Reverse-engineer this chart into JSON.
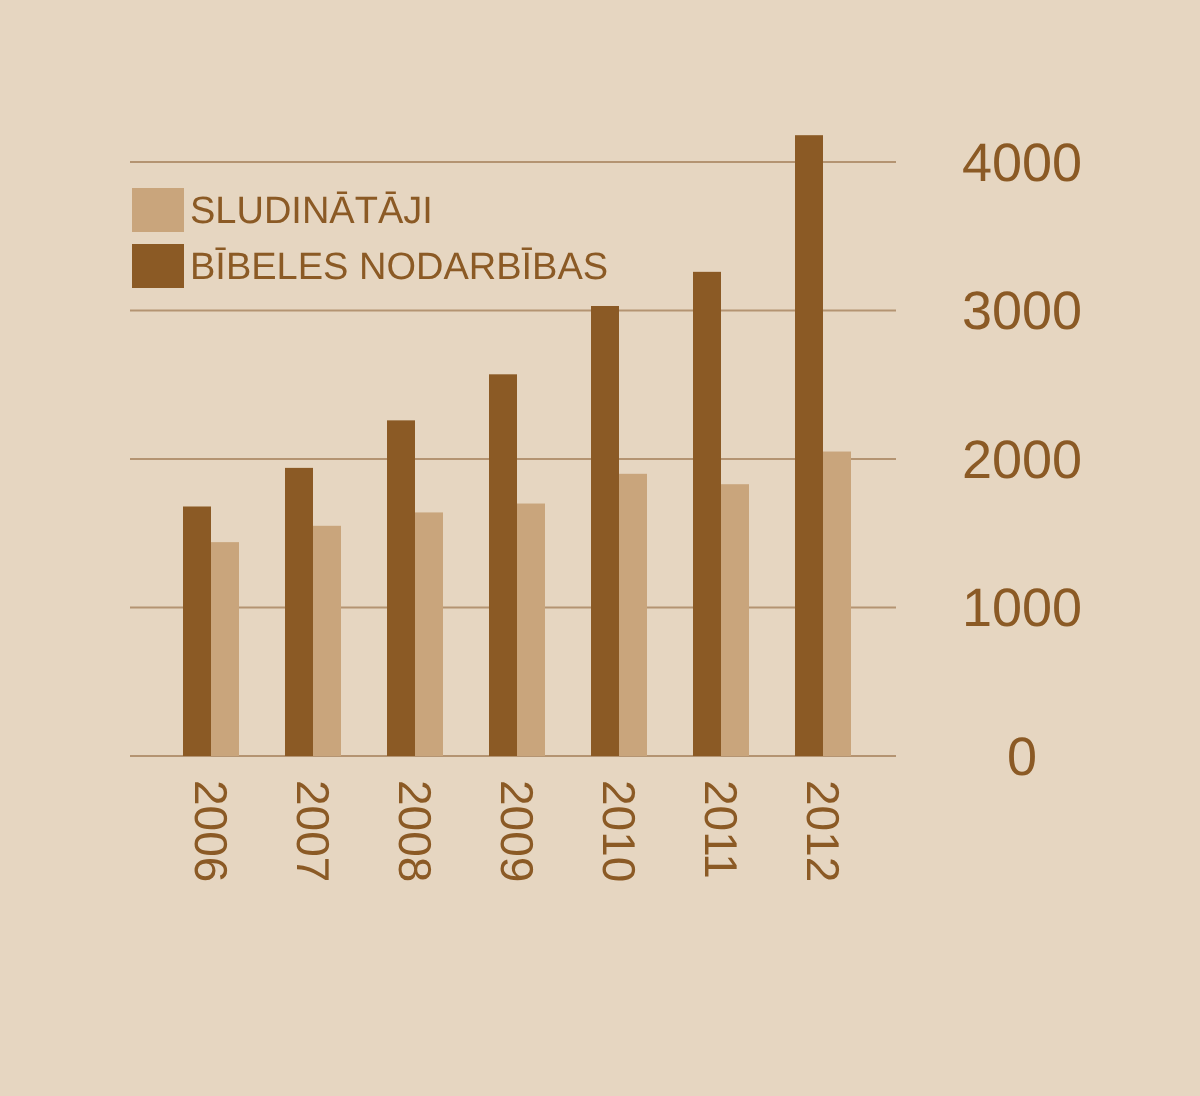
{
  "chart_data": {
    "type": "bar",
    "categories": [
      "2006",
      "2007",
      "2008",
      "2009",
      "2010",
      "2011",
      "2012"
    ],
    "series": [
      {
        "name": "SLUDINĀTĀJI",
        "color": "#c9a57c",
        "values": [
          1440,
          1550,
          1640,
          1700,
          1900,
          1830,
          2050
        ]
      },
      {
        "name": "BĪBELES NODARBĪBAS",
        "color": "#8b5a25",
        "values": [
          1680,
          1940,
          2260,
          2570,
          3030,
          3260,
          4180
        ]
      }
    ],
    "ylim": [
      0,
      4180
    ],
    "yticks": [
      0,
      1000,
      2000,
      3000,
      4000
    ],
    "grid": "y",
    "legend": "top left"
  }
}
